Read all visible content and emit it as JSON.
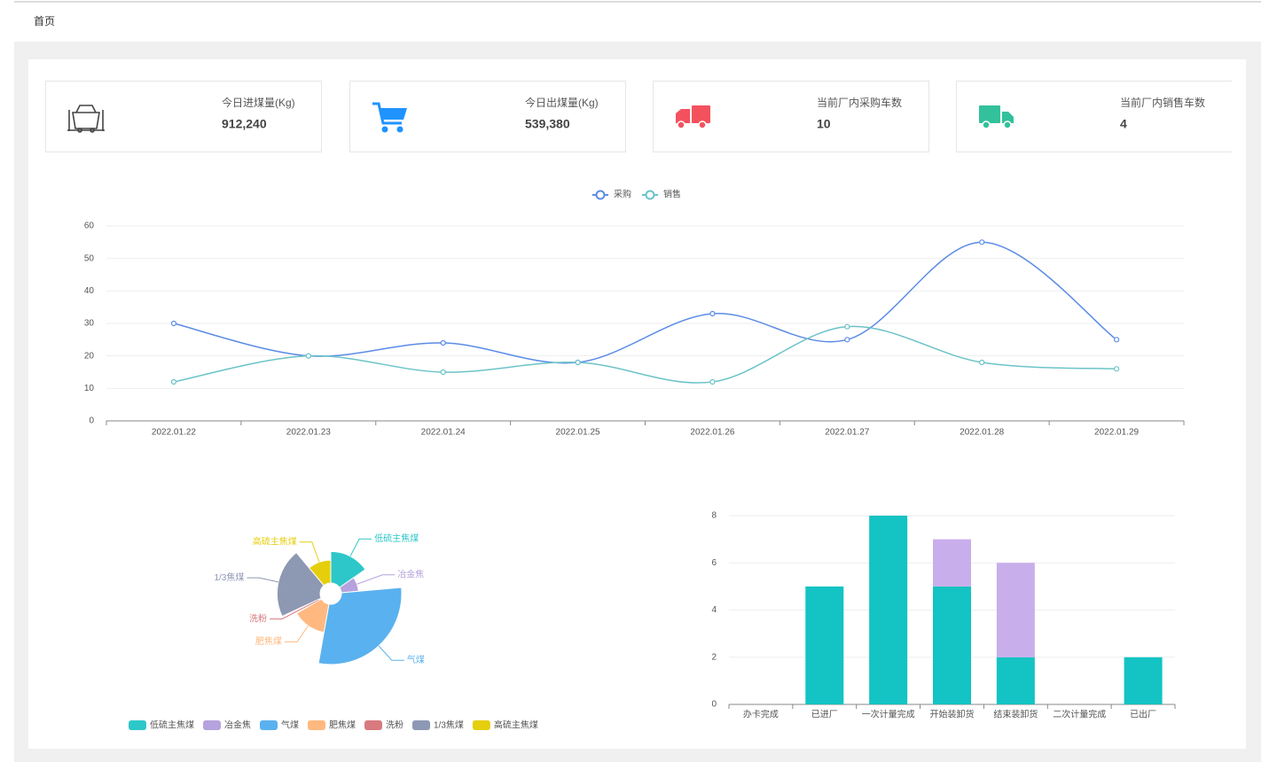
{
  "breadcrumb": "首页",
  "cards": [
    {
      "label": "今日进煤量(Kg)",
      "value": "912,240"
    },
    {
      "label": "今日出煤量(Kg)",
      "value": "539,380"
    },
    {
      "label": "当前厂内采购车数",
      "value": "10"
    },
    {
      "label": "当前厂内销售车数",
      "value": "4"
    }
  ],
  "chart_data": [
    {
      "type": "line",
      "categories": [
        "2022.01.22",
        "2022.01.23",
        "2022.01.24",
        "2022.01.25",
        "2022.01.26",
        "2022.01.27",
        "2022.01.28",
        "2022.01.29"
      ],
      "series": [
        {
          "name": "采购",
          "color": "#5b8ce6",
          "values": [
            30,
            20,
            24,
            18,
            33,
            25,
            55,
            25
          ]
        },
        {
          "name": "销售",
          "color": "#6cc3c8",
          "values": [
            12,
            20,
            15,
            18,
            12,
            29,
            18,
            16
          ]
        }
      ],
      "ylim": [
        0,
        60
      ],
      "yticks": [
        0,
        10,
        20,
        30,
        40,
        50,
        60
      ],
      "grid": true,
      "smooth": true
    },
    {
      "type": "rose",
      "categories": [
        "低硫主焦煤",
        "冶金焦",
        "气煤",
        "肥焦煤",
        "洗粉",
        "1/3焦煤",
        "高硫主焦煤"
      ],
      "values": [
        11,
        6,
        21,
        10,
        1,
        15,
        8
      ],
      "colors": [
        "#2ec7c9",
        "#b6a2de",
        "#5ab1ef",
        "#ffb980",
        "#d87a80",
        "#8d98b3",
        "#e5cf0d"
      ]
    },
    {
      "type": "stacked-bar",
      "categories": [
        "办卡完成",
        "已进厂",
        "一次计量完成",
        "开始装卸货",
        "结束装卸货",
        "二次计量完成",
        "已出厂"
      ],
      "series": [
        {
          "color": "#14c3c3",
          "values": [
            0,
            5,
            8,
            5,
            2,
            0,
            2
          ]
        },
        {
          "color": "#c9aeec",
          "values": [
            0,
            0,
            0,
            2,
            4,
            0,
            0
          ]
        }
      ],
      "ylim": [
        0,
        8
      ],
      "yticks": [
        0,
        2,
        4,
        6,
        8
      ],
      "grid": true
    }
  ]
}
